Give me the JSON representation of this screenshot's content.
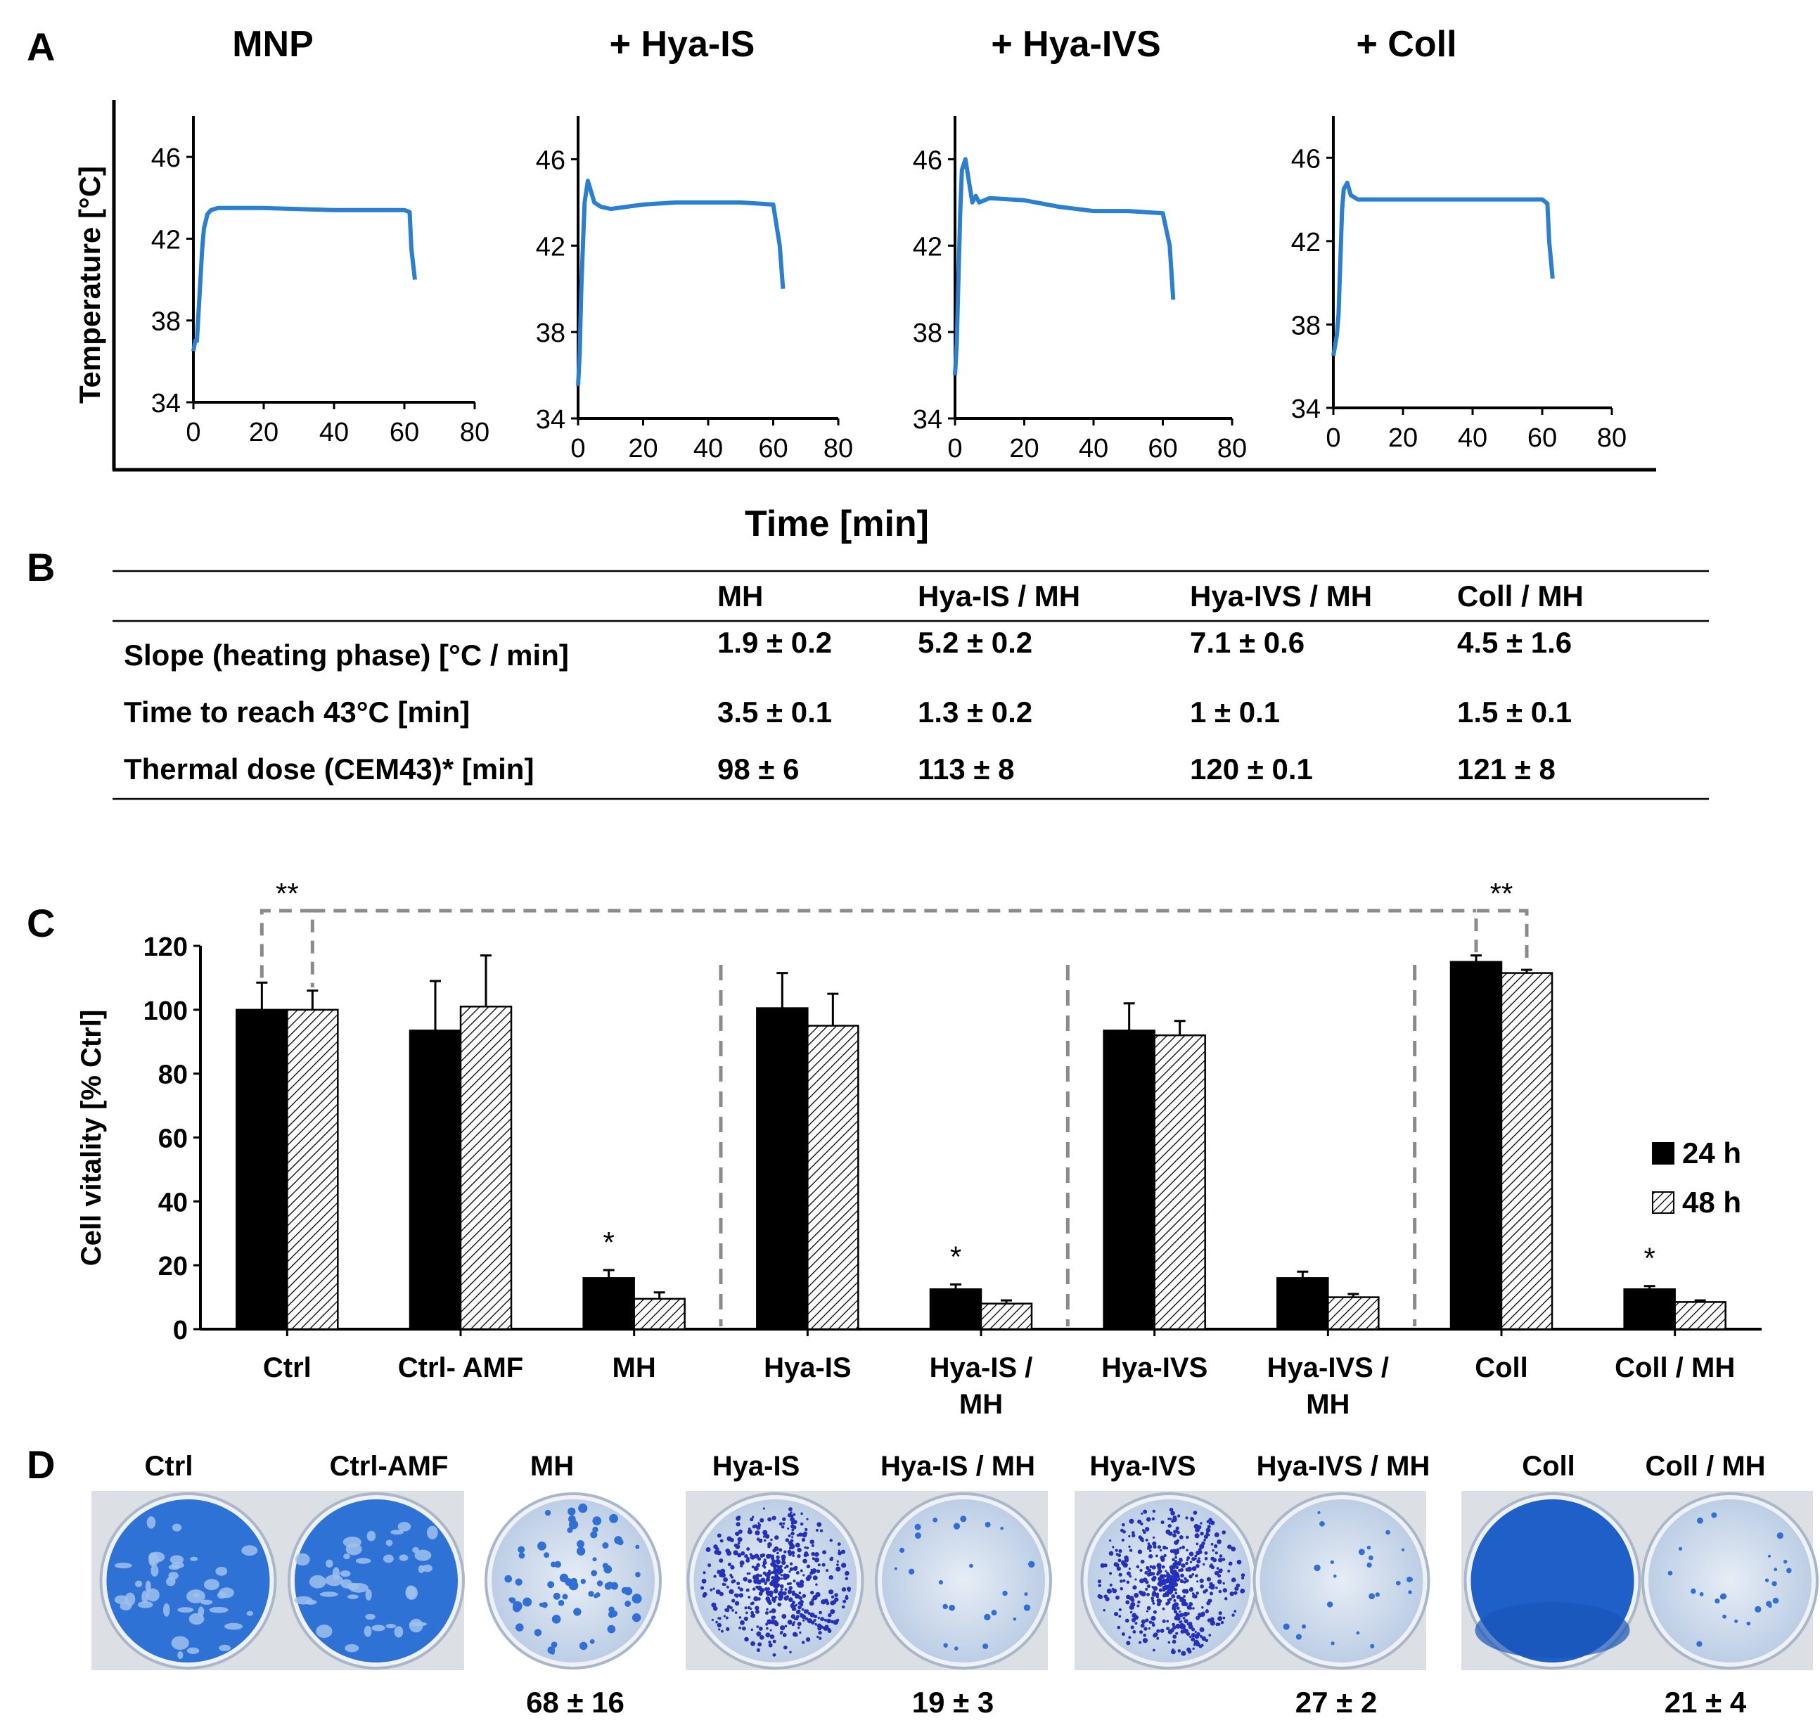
{
  "panel_letters": {
    "a": "A",
    "b": "B",
    "c": "C",
    "d": "D"
  },
  "colors": {
    "line": "#2a7fd0",
    "bar_solid": "#000000",
    "axis": "#000000",
    "dashed": "#8a8a8a",
    "dish_blue": "#2a6fd6",
    "dish_bg": "#c9d7ea"
  },
  "chart_data": [
    {
      "type": "line",
      "title": "MNP",
      "xlabel": "Time [min]",
      "ylabel": "Temperature [°C]",
      "xlim": [
        0,
        80
      ],
      "ylim": [
        34,
        48
      ],
      "xticks": [
        "0",
        "20",
        "40",
        "60",
        "80"
      ],
      "yticks": [
        "34",
        "38",
        "42",
        "46"
      ],
      "x": [
        0,
        0.5,
        1,
        1.5,
        2,
        2.5,
        3,
        4,
        5,
        7,
        10,
        20,
        40,
        60,
        61.5,
        62,
        63
      ],
      "y": [
        36.5,
        37.0,
        37.0,
        38.5,
        40.0,
        41.5,
        42.5,
        43.2,
        43.4,
        43.5,
        43.5,
        43.5,
        43.4,
        43.4,
        43.3,
        41.5,
        40.0
      ]
    },
    {
      "type": "line",
      "title": "+ Hya-IS",
      "xlabel": "Time [min]",
      "ylabel": "Temperature [°C]",
      "xlim": [
        0,
        80
      ],
      "ylim": [
        34,
        48
      ],
      "xticks": [
        "0",
        "20",
        "40",
        "60",
        "80"
      ],
      "yticks": [
        "34",
        "38",
        "42",
        "46"
      ],
      "x": [
        0,
        0.5,
        1,
        1.5,
        2,
        3,
        4,
        5,
        7,
        10,
        15,
        20,
        30,
        40,
        50,
        60,
        62,
        63
      ],
      "y": [
        35.5,
        37.0,
        40.0,
        42.0,
        44.0,
        45.0,
        44.5,
        44.0,
        43.8,
        43.7,
        43.8,
        43.9,
        44.0,
        44.0,
        44.0,
        43.9,
        42.0,
        40.0
      ]
    },
    {
      "type": "line",
      "title": "+ Hya-IVS",
      "xlabel": "Time [min]",
      "ylabel": "Temperature [°C]",
      "xlim": [
        0,
        80
      ],
      "ylim": [
        34,
        48
      ],
      "xticks": [
        "0",
        "20",
        "40",
        "60",
        "80"
      ],
      "yticks": [
        "34",
        "38",
        "42",
        "46"
      ],
      "x": [
        0,
        0.5,
        1,
        1.5,
        2,
        3,
        4,
        5,
        6,
        7,
        10,
        20,
        30,
        40,
        50,
        60,
        62,
        63
      ],
      "y": [
        36.0,
        37.5,
        40.5,
        43.5,
        45.5,
        46.0,
        45.0,
        44.0,
        44.3,
        44.0,
        44.2,
        44.1,
        43.8,
        43.6,
        43.6,
        43.5,
        42.0,
        39.5
      ]
    },
    {
      "type": "line",
      "title": "+ Coll",
      "xlabel": "Time [min]",
      "ylabel": "Temperature [°C]",
      "xlim": [
        0,
        80
      ],
      "ylim": [
        34,
        48
      ],
      "xticks": [
        "0",
        "20",
        "40",
        "60",
        "80"
      ],
      "yticks": [
        "34",
        "38",
        "42",
        "46"
      ],
      "x": [
        0,
        0.5,
        1,
        1.5,
        2,
        2.5,
        3,
        4,
        5,
        7,
        10,
        20,
        40,
        60,
        61.5,
        62,
        63
      ],
      "y": [
        36.5,
        37.0,
        37.5,
        38.5,
        41.0,
        43.5,
        44.5,
        44.8,
        44.2,
        44.0,
        44.0,
        44.0,
        44.0,
        44.0,
        43.8,
        42.0,
        40.2
      ]
    },
    {
      "type": "table",
      "columns": [
        "MH",
        "Hya-IS / MH",
        "Hya-IVS / MH",
        "Coll / MH"
      ],
      "rows": [
        {
          "label": "Slope (heating phase) [°C / min]",
          "values": [
            "1.9 ± 0.2",
            "5.2 ± 0.2",
            "7.1 ± 0.6",
            "4.5 ± 1.6"
          ]
        },
        {
          "label": "Time to reach 43°C [min]",
          "values": [
            "3.5 ± 0.1",
            "1.3 ± 0.2",
            "1 ± 0.1",
            "1.5 ± 0.1"
          ]
        },
        {
          "label": "Thermal dose (CEM43)* [min]",
          "values": [
            "98 ± 6",
            "113 ± 8",
            "120 ± 0.1",
            "121 ± 8"
          ]
        }
      ]
    },
    {
      "type": "bar",
      "ylabel": "Cell vitality [% Ctrl]",
      "ylim": [
        0,
        120
      ],
      "yticks": [
        "0",
        "20",
        "40",
        "60",
        "80",
        "100",
        "120"
      ],
      "categories": [
        "Ctrl",
        "Ctrl- AMF",
        "MH",
        "Hya-IS",
        "Hya-IS / MH",
        "Hya-IVS",
        "Hya-IVS / MH",
        "Coll",
        "Coll / MH"
      ],
      "series": [
        {
          "name": "24 h",
          "values": [
            100,
            93.5,
            16,
            100.5,
            12.5,
            93.5,
            16,
            115,
            12.5
          ],
          "errors": [
            8.5,
            15.5,
            2.5,
            11,
            1.5,
            8.5,
            2,
            2,
            1
          ]
        },
        {
          "name": "48 h",
          "values": [
            100,
            101,
            9.5,
            95,
            8,
            92,
            10,
            111.5,
            8.5
          ],
          "errors": [
            6,
            16,
            2,
            10,
            1,
            4.5,
            1,
            1,
            0.5
          ]
        }
      ],
      "significance": [
        "*",
        "*",
        "*"
      ],
      "significance_at": [
        "MH",
        "Hya-IS / MH",
        "Coll / MH"
      ],
      "brackets": [
        {
          "label": "**",
          "between": "Ctrl 24 h / 48 h"
        },
        {
          "label": "**",
          "between": "Coll 24 h / 48 h"
        }
      ]
    }
  ],
  "panel_d": {
    "dishes": [
      {
        "label": "Ctrl",
        "pattern": "dense"
      },
      {
        "label": "Ctrl-AMF",
        "pattern": "dense"
      },
      {
        "label": "MH",
        "pattern": "sparse",
        "count": "68 ± 16"
      },
      {
        "label": "Hya-IS",
        "pattern": "dots"
      },
      {
        "label": "Hya-IS / MH",
        "pattern": "few",
        "count": "19 ± 3"
      },
      {
        "label": "Hya-IVS",
        "pattern": "dots"
      },
      {
        "label": "Hya-IVS / MH",
        "pattern": "few",
        "count": "27 ± 2"
      },
      {
        "label": "Coll",
        "pattern": "solid"
      },
      {
        "label": "Coll / MH",
        "pattern": "few",
        "count": "21 ± 4"
      }
    ]
  }
}
